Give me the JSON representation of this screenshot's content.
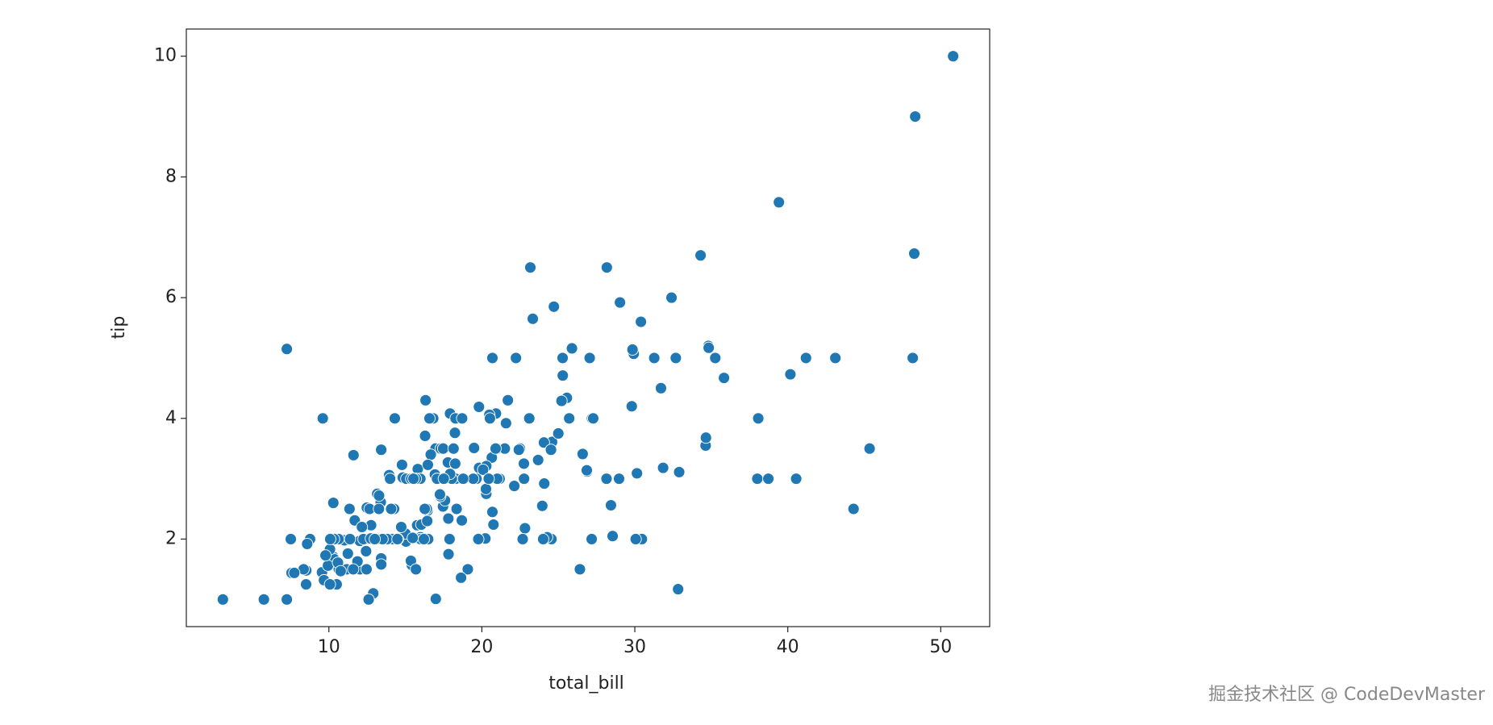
{
  "chart_data": {
    "type": "scatter",
    "x_label": "total_bill",
    "y_label": "tip",
    "color": "#1f77b4",
    "xlim": [
      0.68,
      53.2
    ],
    "ylim": [
      0.55,
      10.45
    ],
    "xticks": [
      10,
      20,
      30,
      40,
      50
    ],
    "yticks": [
      2,
      4,
      6,
      8,
      10
    ],
    "x": [
      16.99,
      10.34,
      21.01,
      23.68,
      24.59,
      25.29,
      8.77,
      26.88,
      15.04,
      14.78,
      10.27,
      35.26,
      15.42,
      18.43,
      14.83,
      21.58,
      10.33,
      16.29,
      16.97,
      20.65,
      17.92,
      20.29,
      15.77,
      39.42,
      19.82,
      17.81,
      13.37,
      12.69,
      21.7,
      19.65,
      9.55,
      18.35,
      15.06,
      20.69,
      17.78,
      24.06,
      16.31,
      16.93,
      18.69,
      31.27,
      16.04,
      17.46,
      13.94,
      9.68,
      30.4,
      18.29,
      22.23,
      32.4,
      28.55,
      18.04,
      12.54,
      10.29,
      34.81,
      9.94,
      25.56,
      19.49,
      38.01,
      26.41,
      11.24,
      48.27,
      20.29,
      13.81,
      11.02,
      18.29,
      17.59,
      20.08,
      16.45,
      3.07,
      20.23,
      15.01,
      12.02,
      17.07,
      26.86,
      25.28,
      14.73,
      10.51,
      17.92,
      27.2,
      22.76,
      17.29,
      19.44,
      16.66,
      10.07,
      32.68,
      15.98,
      34.83,
      13.03,
      18.28,
      24.71,
      21.16,
      28.97,
      22.49,
      5.75,
      16.32,
      22.75,
      40.17,
      27.28,
      12.03,
      21.01,
      12.46,
      11.35,
      15.38,
      44.3,
      22.42,
      20.92,
      15.36,
      20.49,
      25.21,
      18.24,
      14.31,
      14.0,
      7.25,
      38.07,
      23.95,
      25.71,
      17.31,
      29.93,
      10.65,
      12.43,
      24.08,
      11.69,
      13.42,
      14.26,
      15.95,
      12.48,
      29.8,
      8.52,
      14.52,
      11.38,
      22.82,
      19.08,
      20.27,
      11.17,
      12.26,
      18.26,
      8.51,
      10.33,
      14.15,
      16.0,
      13.16,
      17.47,
      34.3,
      41.19,
      27.05,
      16.43,
      8.35,
      18.64,
      11.87,
      9.78,
      7.51,
      14.07,
      13.13,
      17.26,
      24.55,
      19.77,
      29.85,
      48.17,
      25.0,
      13.39,
      16.49,
      21.5,
      12.66,
      16.21,
      13.81,
      17.51,
      24.52,
      20.76,
      31.71,
      10.59,
      10.63,
      50.81,
      15.81,
      7.25,
      31.85,
      16.82,
      32.9,
      17.89,
      14.48,
      9.6,
      34.63,
      34.65,
      23.33,
      45.35,
      23.17,
      40.55,
      20.69,
      20.9,
      30.46,
      18.15,
      23.1,
      15.69,
      19.81,
      28.44,
      15.48,
      16.58,
      7.56,
      10.34,
      43.11,
      13.0,
      13.51,
      18.71,
      12.74,
      13.0,
      16.4,
      20.53,
      16.47,
      26.59,
      38.73,
      24.27,
      12.76,
      30.06,
      25.89,
      48.33,
      13.27,
      28.17,
      12.9,
      28.15,
      11.59,
      7.74,
      30.14,
      12.16,
      13.42,
      8.58,
      15.98,
      13.42,
      16.27,
      10.09,
      20.45,
      13.28,
      22.12,
      24.01,
      15.69,
      11.61,
      10.77,
      15.53,
      10.07,
      12.6,
      32.83,
      35.83,
      29.03,
      27.18,
      22.67,
      17.82,
      18.78
    ],
    "values": [
      1.01,
      1.66,
      3.5,
      3.31,
      3.61,
      4.71,
      2.0,
      3.12,
      1.96,
      3.23,
      1.71,
      5.0,
      1.57,
      3.0,
      3.02,
      3.92,
      1.67,
      3.71,
      3.5,
      3.35,
      4.08,
      2.75,
      2.23,
      7.58,
      3.18,
      2.34,
      2.0,
      2.0,
      4.3,
      3.0,
      1.45,
      2.5,
      3.0,
      2.45,
      3.27,
      3.6,
      2.0,
      3.07,
      2.31,
      5.0,
      2.24,
      2.54,
      3.06,
      1.32,
      5.6,
      3.0,
      5.0,
      6.0,
      2.05,
      3.0,
      2.5,
      2.6,
      5.2,
      1.56,
      4.34,
      3.51,
      3.0,
      1.5,
      1.76,
      6.73,
      3.21,
      2.0,
      1.98,
      3.76,
      2.64,
      3.15,
      2.47,
      1.0,
      2.01,
      2.09,
      1.97,
      3.0,
      3.14,
      5.0,
      2.2,
      1.25,
      3.08,
      4.0,
      3.0,
      2.71,
      3.0,
      3.4,
      1.83,
      5.0,
      2.03,
      5.17,
      2.0,
      4.0,
      5.85,
      3.0,
      3.0,
      3.5,
      1.0,
      4.3,
      3.25,
      4.73,
      4.0,
      1.5,
      3.0,
      1.5,
      2.5,
      3.0,
      2.5,
      3.48,
      4.08,
      1.64,
      4.06,
      4.29,
      3.76,
      4.0,
      3.0,
      1.0,
      4.0,
      2.55,
      4.0,
      3.5,
      5.07,
      1.5,
      1.8,
      2.92,
      2.31,
      1.68,
      2.5,
      2.0,
      2.52,
      4.2,
      1.48,
      2.0,
      2.0,
      2.18,
      1.5,
      2.83,
      1.5,
      2.0,
      3.25,
      1.25,
      2.0,
      2.0,
      2.0,
      2.75,
      3.5,
      6.7,
      5.0,
      5.0,
      2.3,
      1.5,
      1.36,
      1.63,
      1.73,
      2.0,
      2.5,
      2.0,
      2.74,
      2.0,
      2.0,
      5.14,
      5.0,
      3.75,
      2.61,
      2.0,
      3.5,
      2.5,
      2.0,
      2.0,
      3.0,
      3.48,
      2.24,
      4.5,
      1.61,
      2.0,
      10.0,
      3.16,
      5.15,
      3.18,
      4.0,
      3.11,
      2.0,
      2.0,
      4.0,
      3.55,
      3.68,
      5.65,
      3.5,
      6.5,
      3.0,
      5.0,
      3.5,
      2.0,
      3.5,
      4.0,
      1.5,
      4.19,
      2.56,
      2.02,
      4.0,
      1.44,
      2.0,
      5.0,
      2.0,
      2.0,
      4.0,
      2.01,
      2.0,
      2.5,
      4.0,
      3.23,
      3.41,
      3.0,
      2.03,
      2.23,
      2.0,
      5.16,
      9.0,
      2.5,
      6.5,
      1.1,
      3.0,
      1.5,
      1.44,
      3.09,
      2.2,
      3.48,
      1.92,
      3.0,
      1.58,
      2.5,
      2.0,
      3.0,
      2.72,
      2.88,
      2.0,
      3.0,
      3.39,
      1.47,
      3.0,
      1.25,
      1.0,
      1.17,
      4.67,
      5.92,
      2.0,
      2.0,
      1.75,
      3.0
    ]
  },
  "watermark": "掘金技术社区 @ CodeDevMaster"
}
